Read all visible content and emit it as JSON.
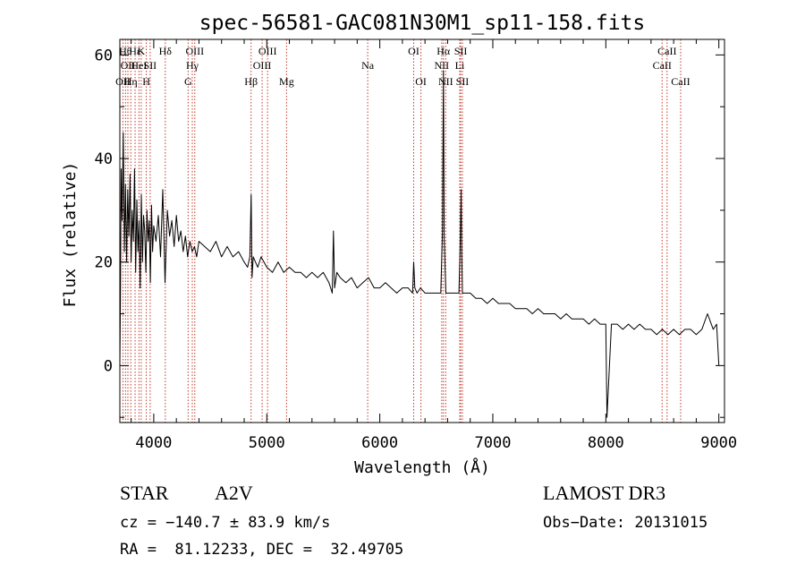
{
  "chart_data": {
    "type": "line",
    "title": "spec-56581-GAC081N30M1_sp11-158.fits",
    "xlabel": "Wavelength (Å)",
    "ylabel": "Flux (relative)",
    "xlim": [
      3700,
      9050
    ],
    "ylim": [
      -11,
      63
    ],
    "xticks": [
      4000,
      5000,
      6000,
      7000,
      8000,
      9000
    ],
    "yticks": [
      0,
      20,
      40,
      60
    ],
    "series": [
      {
        "name": "spectrum",
        "x": [
          3700,
          3705,
          3712,
          3720,
          3730,
          3740,
          3750,
          3760,
          3770,
          3780,
          3790,
          3800,
          3810,
          3820,
          3830,
          3840,
          3850,
          3860,
          3870,
          3880,
          3890,
          3900,
          3910,
          3920,
          3930,
          3940,
          3950,
          3960,
          3970,
          3980,
          3990,
          4000,
          4020,
          4040,
          4060,
          4080,
          4100,
          4120,
          4140,
          4160,
          4180,
          4200,
          4220,
          4240,
          4260,
          4280,
          4300,
          4320,
          4340,
          4360,
          4380,
          4400,
          4450,
          4500,
          4550,
          4600,
          4650,
          4700,
          4750,
          4800,
          4830,
          4850,
          4862,
          4870,
          4880,
          4900,
          4920,
          4950,
          5000,
          5050,
          5100,
          5150,
          5200,
          5250,
          5300,
          5350,
          5400,
          5450,
          5500,
          5550,
          5580,
          5590,
          5600,
          5620,
          5650,
          5700,
          5750,
          5800,
          5850,
          5900,
          5950,
          6000,
          6050,
          6100,
          6150,
          6200,
          6250,
          6290,
          6300,
          6310,
          6330,
          6360,
          6400,
          6450,
          6500,
          6540,
          6555,
          6563,
          6570,
          6585,
          6600,
          6650,
          6700,
          6710,
          6720,
          6725,
          6731,
          6740,
          6760,
          6800,
          6850,
          6900,
          6950,
          7000,
          7050,
          7100,
          7150,
          7200,
          7250,
          7300,
          7350,
          7400,
          7450,
          7500,
          7550,
          7600,
          7650,
          7700,
          7750,
          7800,
          7850,
          7900,
          7950,
          7990,
          8000,
          8010,
          8050,
          8100,
          8150,
          8200,
          8250,
          8300,
          8350,
          8400,
          8450,
          8500,
          8550,
          8600,
          8650,
          8700,
          8750,
          8800,
          8850,
          8900,
          8950,
          8980,
          9000
        ],
        "y": [
          0,
          12,
          38,
          28,
          45,
          22,
          35,
          20,
          34,
          25,
          37,
          20,
          30,
          24,
          38,
          18,
          32,
          22,
          28,
          15,
          33,
          20,
          29,
          26,
          18,
          30,
          24,
          28,
          16,
          31,
          22,
          27,
          24,
          29,
          21,
          34,
          16,
          30,
          25,
          28,
          23,
          29,
          24,
          26,
          22,
          25,
          21,
          24,
          22,
          23,
          21,
          24,
          23,
          22,
          24,
          21,
          23,
          21,
          22,
          20,
          19,
          21,
          33,
          17,
          21,
          20,
          19,
          21,
          19,
          18,
          20,
          18,
          19,
          18,
          18,
          17,
          18,
          17,
          18,
          16,
          14,
          26,
          15,
          18,
          17,
          16,
          17,
          15,
          16,
          17,
          15,
          15,
          16,
          15,
          14,
          15,
          15,
          14,
          20,
          15,
          14,
          15,
          14,
          14,
          14,
          14,
          26,
          57,
          25,
          14,
          14,
          14,
          14,
          22,
          34,
          22,
          14,
          14,
          14,
          14,
          13,
          13,
          12,
          13,
          12,
          12,
          12,
          11,
          11,
          11,
          10,
          11,
          10,
          10,
          10,
          9,
          10,
          9,
          9,
          9,
          8,
          9,
          8,
          8,
          8,
          -10,
          8,
          8,
          7,
          8,
          7,
          8,
          7,
          7,
          6,
          7,
          6,
          7,
          6,
          7,
          7,
          6,
          7,
          10,
          7,
          8,
          0
        ]
      }
    ],
    "lines": [
      {
        "lambda": 3727,
        "label": "OII",
        "row": 3
      },
      {
        "lambda": 3750,
        "label": "Hθ",
        "row": 1
      },
      {
        "lambda": 3771,
        "label": "OII",
        "row": 2
      },
      {
        "lambda": 3797,
        "label": "Hη",
        "row": 3
      },
      {
        "lambda": 3835,
        "label": "Hε",
        "row": 1
      },
      {
        "lambda": 3869,
        "label": "HeI",
        "row": 2
      },
      {
        "lambda": 3889,
        "label": "K",
        "row": 1
      },
      {
        "lambda": 3934,
        "label": "H",
        "row": 3
      },
      {
        "lambda": 3968,
        "label": "SII",
        "row": 2
      },
      {
        "lambda": 4102,
        "label": "Hδ",
        "row": 1
      },
      {
        "lambda": 4304,
        "label": "G",
        "row": 3
      },
      {
        "lambda": 4341,
        "label": "Hγ",
        "row": 2
      },
      {
        "lambda": 4363,
        "label": "OIII",
        "row": 1
      },
      {
        "lambda": 4861,
        "label": "Hβ",
        "row": 3
      },
      {
        "lambda": 4959,
        "label": "OIII",
        "row": 2
      },
      {
        "lambda": 5007,
        "label": "OIII",
        "row": 1
      },
      {
        "lambda": 5175,
        "label": "Mg",
        "row": 3
      },
      {
        "lambda": 5893,
        "label": "Na",
        "row": 2
      },
      {
        "lambda": 6300,
        "label": "OI",
        "row": 1
      },
      {
        "lambda": 6364,
        "label": "OI",
        "row": 3
      },
      {
        "lambda": 6548,
        "label": "NII",
        "row": 2
      },
      {
        "lambda": 6563,
        "label": "Hα",
        "row": 1
      },
      {
        "lambda": 6583,
        "label": "NII",
        "row": 3
      },
      {
        "lambda": 6707,
        "label": "Li",
        "row": 2
      },
      {
        "lambda": 6716,
        "label": "SII",
        "row": 1
      },
      {
        "lambda": 6731,
        "label": "SII",
        "row": 3
      },
      {
        "lambda": 8498,
        "label": "CaII",
        "row": 2
      },
      {
        "lambda": 8542,
        "label": "CaII",
        "row": 1
      },
      {
        "lambda": 8662,
        "label": "CaII",
        "row": 3
      }
    ]
  },
  "info": {
    "object_class": "STAR",
    "subclass": "A2V",
    "survey": "LAMOST DR3",
    "cz": "cz = −140.7 ± 83.9 km/s",
    "obs_date": "Obs−Date: 20131015",
    "radec": "RA =  81.12233, DEC =  32.49705"
  }
}
